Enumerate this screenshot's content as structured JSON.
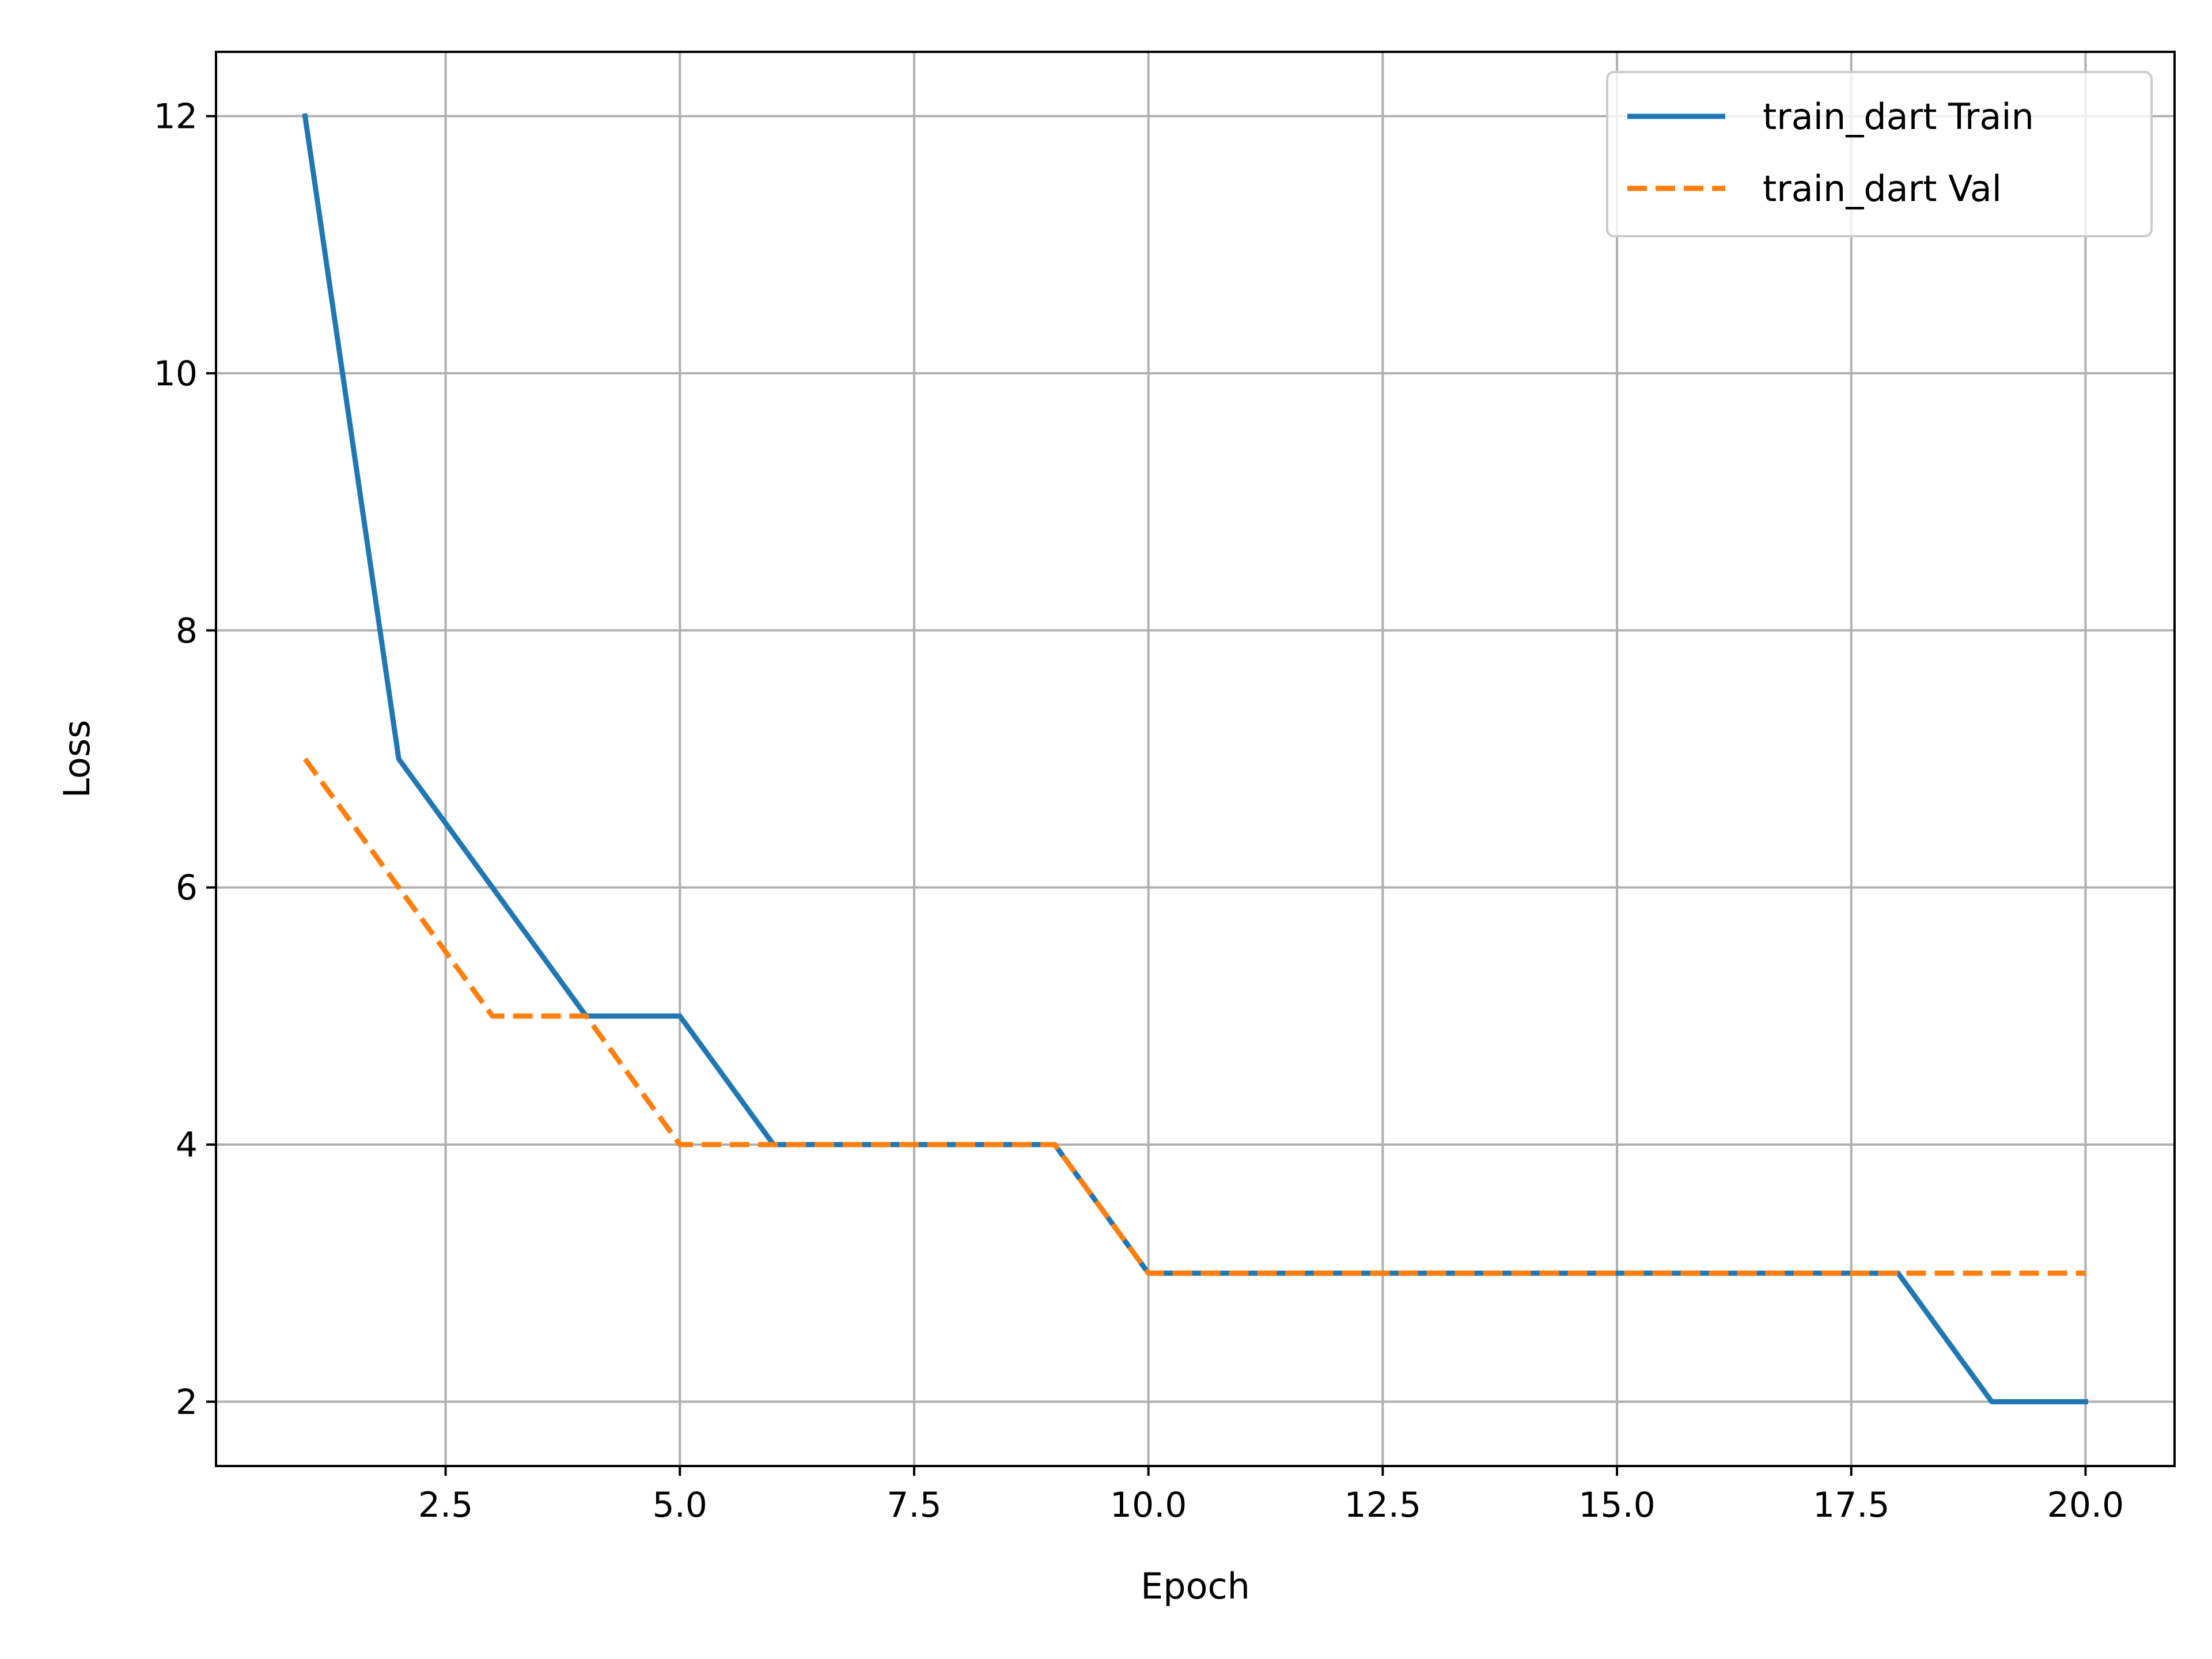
{
  "chart_data": {
    "type": "line",
    "title": "",
    "xlabel": "Epoch",
    "ylabel": "Loss",
    "xlim": [
      0.05,
      20.95
    ],
    "ylim": [
      1.5,
      12.5
    ],
    "xticks": [
      2.5,
      5.0,
      7.5,
      10.0,
      12.5,
      15.0,
      17.5,
      20.0
    ],
    "xtick_labels": [
      "2.5",
      "5.0",
      "7.5",
      "10.0",
      "12.5",
      "15.0",
      "17.5",
      "20.0"
    ],
    "yticks": [
      2,
      4,
      6,
      8,
      10,
      12
    ],
    "ytick_labels": [
      "2",
      "4",
      "6",
      "8",
      "10",
      "12"
    ],
    "grid": true,
    "legend_position": "top-right",
    "x": [
      1,
      2,
      3,
      4,
      5,
      6,
      7,
      8,
      9,
      10,
      11,
      12,
      13,
      14,
      15,
      16,
      17,
      18,
      19,
      20
    ],
    "series": [
      {
        "name": "train_dart Train",
        "color": "#1f77b4",
        "style": "solid",
        "values": [
          12,
          7,
          6,
          5,
          5,
          4,
          4,
          4,
          4,
          3,
          3,
          3,
          3,
          3,
          3,
          3,
          3,
          3,
          2,
          2
        ]
      },
      {
        "name": "train_dart Val",
        "color": "#ff7f0e",
        "style": "dashed",
        "values": [
          7,
          6,
          5,
          5,
          4,
          4,
          4,
          4,
          4,
          3,
          3,
          3,
          3,
          3,
          3,
          3,
          3,
          3,
          3,
          3
        ]
      }
    ]
  }
}
